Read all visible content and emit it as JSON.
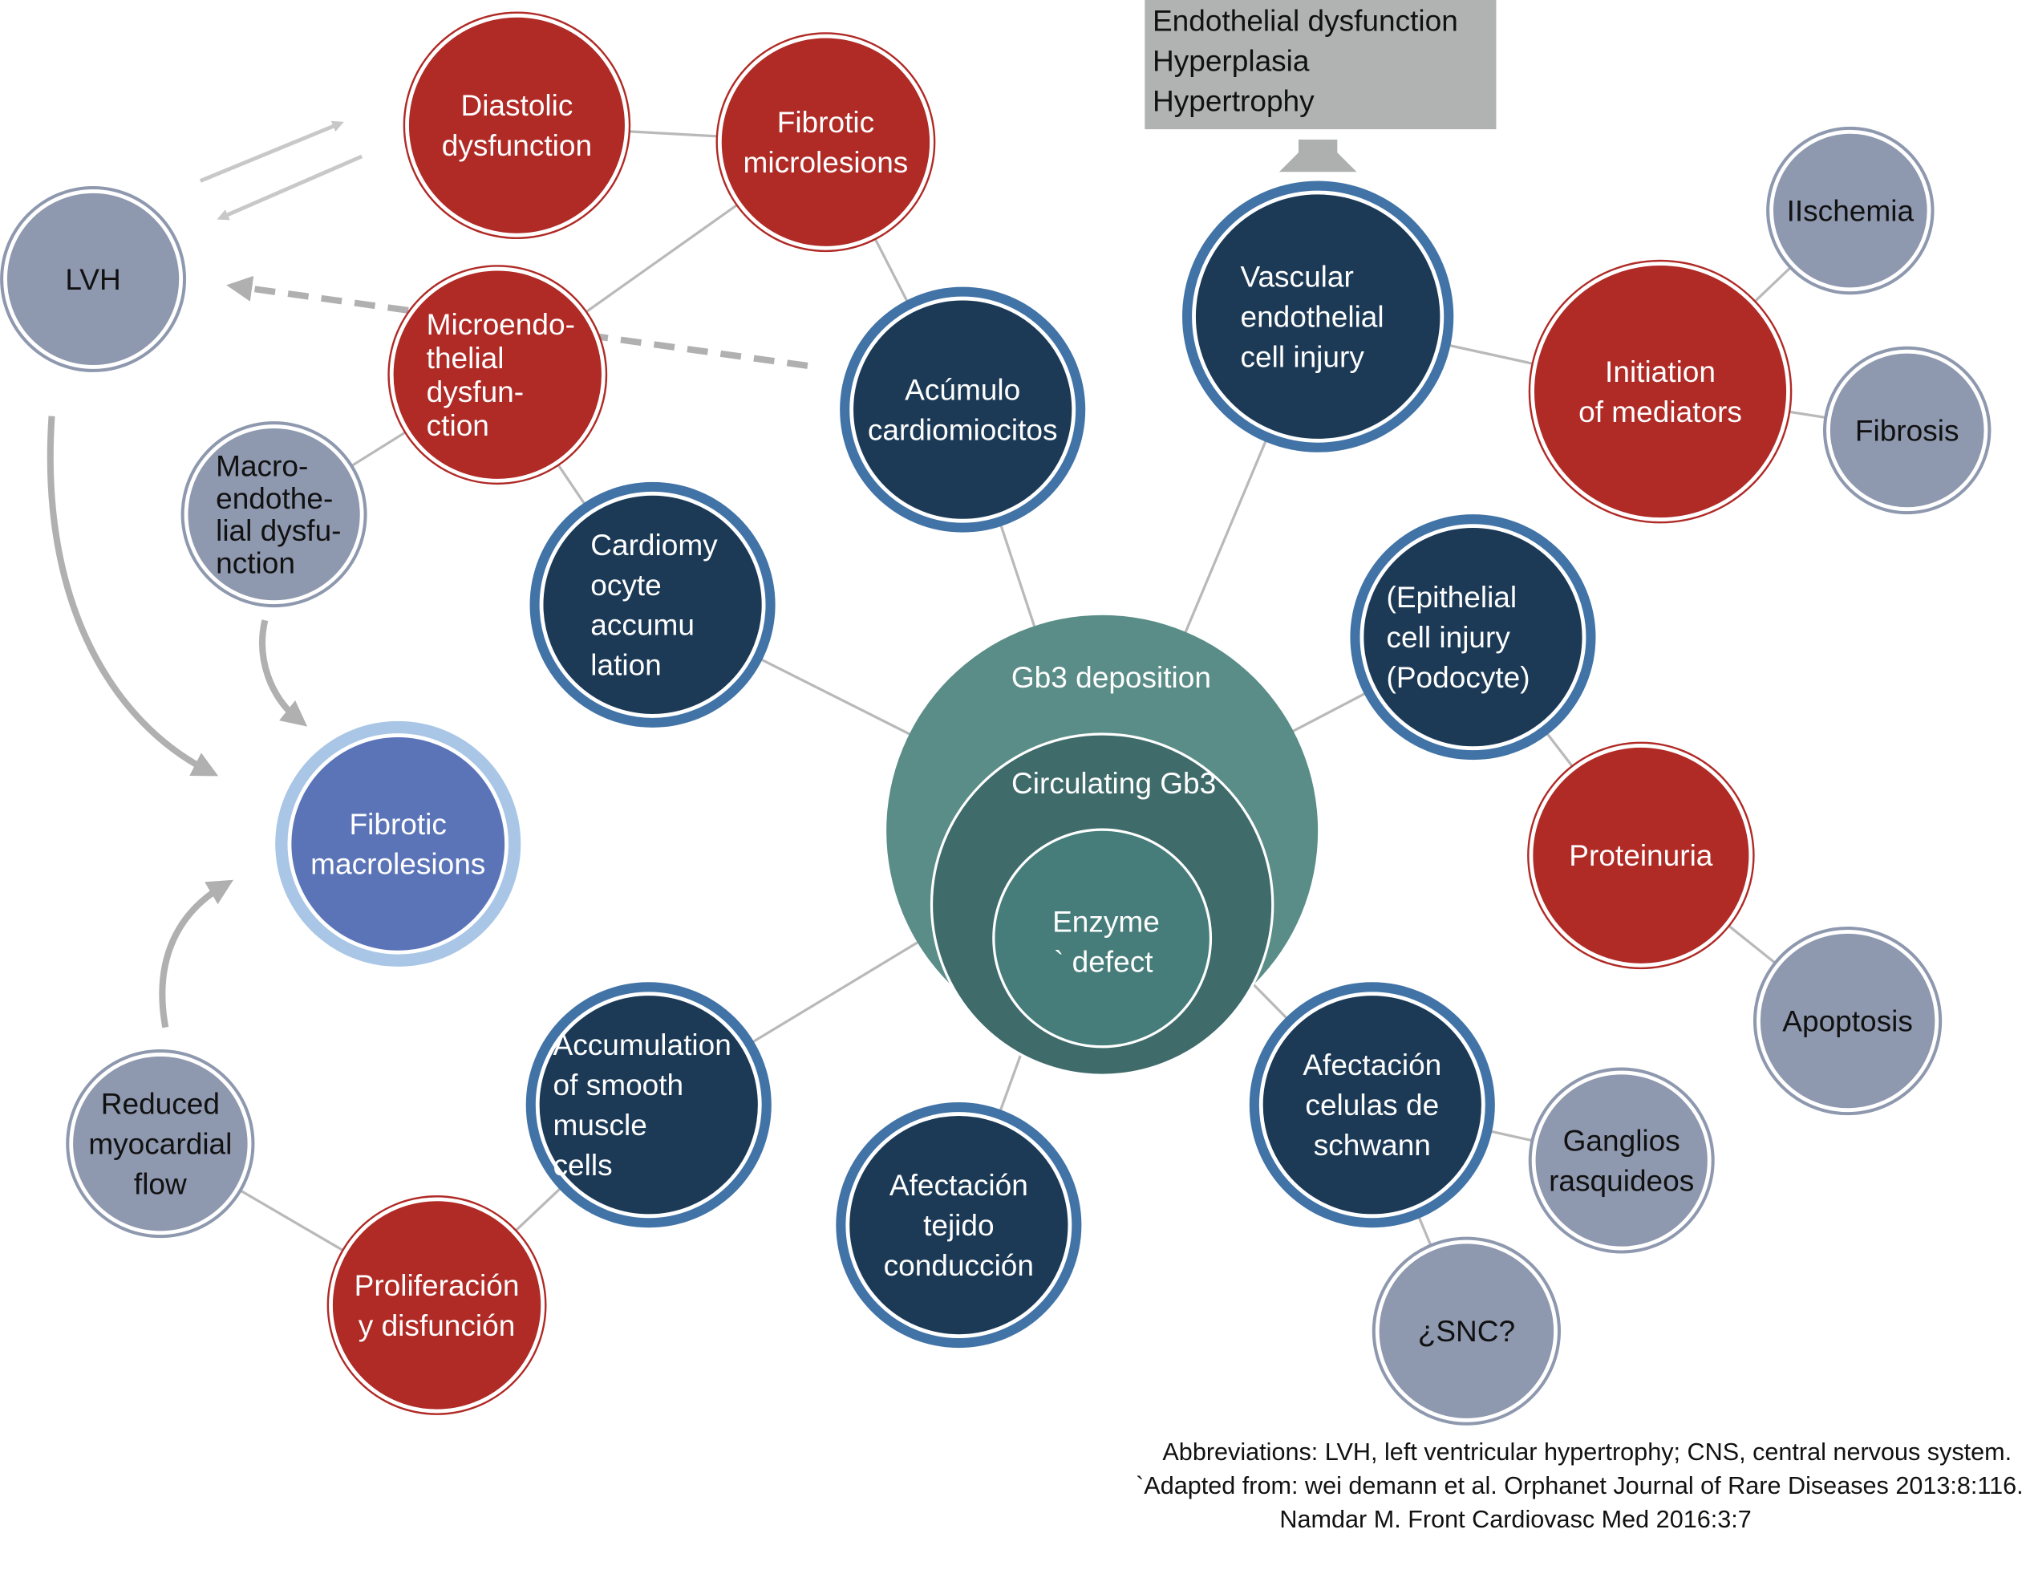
{
  "colors": {
    "red": "#b02a26",
    "navy": "#1c3a56",
    "navy_ring": "#4273a6",
    "gray": "#8e98ae",
    "purple": "#5b74b8",
    "purple_ring": "#a9c6e6",
    "teal_outer": "#5a8d87",
    "teal_middle": "#3f6b6b",
    "teal_inner": "#467d7a",
    "connector": "#b9b9b9",
    "box": "#b1b3b3"
  },
  "effects_box": {
    "lines": [
      "Endothelial dysfunction",
      "Hyperplasia",
      "Hypertrophy"
    ]
  },
  "center": {
    "outer_label": "Gb3 deposition",
    "middle_label": "Circulating Gb3",
    "inner_lines": [
      "Enzyme",
      "` defect"
    ]
  },
  "nodes": [
    {
      "id": "diastolic",
      "type": "red",
      "lines": [
        "Diastolic",
        "dysfunction"
      ]
    },
    {
      "id": "fibrotic-micro",
      "type": "red",
      "lines": [
        "Fibrotic",
        "microlesions"
      ]
    },
    {
      "id": "microendo",
      "type": "red",
      "lines": [
        "Microendo-",
        "thelial",
        "dysfun-",
        "ction"
      ]
    },
    {
      "id": "lvh",
      "type": "gray",
      "lines": [
        "LVH"
      ]
    },
    {
      "id": "macroendo",
      "type": "gray",
      "lines": [
        "Macro-",
        "endothe-",
        "lial dysfu-",
        "nction"
      ]
    },
    {
      "id": "cardiomyocyte-acc",
      "type": "navy",
      "lines": [
        "Cardiomy",
        "ocyte",
        "accumu",
        "lation"
      ]
    },
    {
      "id": "acumulo",
      "type": "navy",
      "lines": [
        "Acúmulo",
        "cardiomiocitos"
      ]
    },
    {
      "id": "fibrotic-macro",
      "type": "purple",
      "lines": [
        "Fibrotic",
        "macrolesions"
      ]
    },
    {
      "id": "vascular",
      "type": "navy",
      "lines": [
        "Vascular",
        " endothelial",
        "cell injury"
      ]
    },
    {
      "id": "mediators",
      "type": "red",
      "lines": [
        "Initiation",
        "of mediators"
      ]
    },
    {
      "id": "ischemia",
      "type": "gray",
      "lines": [
        "IIschemia"
      ]
    },
    {
      "id": "fibrosis",
      "type": "gray",
      "lines": [
        "Fibrosis"
      ]
    },
    {
      "id": "epithelial",
      "type": "navy",
      "lines": [
        "(Epithelial",
        "cell injury",
        "(Podocyte)"
      ]
    },
    {
      "id": "proteinuria",
      "type": "red",
      "lines": [
        "Proteinuria"
      ]
    },
    {
      "id": "apoptosis",
      "type": "gray",
      "lines": [
        "Apoptosis"
      ]
    },
    {
      "id": "schwann",
      "type": "navy",
      "lines": [
        "Afectación",
        "celulas de",
        "schwann"
      ]
    },
    {
      "id": "ganglios",
      "type": "gray",
      "lines": [
        "Ganglios",
        "rasquideos"
      ]
    },
    {
      "id": "snc",
      "type": "gray",
      "lines": [
        "¿SNC?"
      ]
    },
    {
      "id": "conduccion",
      "type": "navy",
      "lines": [
        "Afectación",
        "tejido",
        "conducción"
      ]
    },
    {
      "id": "smooth-muscle",
      "type": "navy",
      "lines": [
        "Accumulation",
        " of smooth",
        "muscle",
        "cells"
      ]
    },
    {
      "id": "proliferacion",
      "type": "red",
      "lines": [
        "Proliferación",
        "y disfunción"
      ]
    },
    {
      "id": "reduced-flow",
      "type": "gray",
      "lines": [
        "Reduced",
        "myocardial",
        "flow"
      ]
    }
  ],
  "footnote": {
    "abbreviations": "Abbreviations: LVH, left ventricular hypertrophy; CNS, central nervous system.",
    "adapted": "`Adapted from: wei  demann et al. Orphanet Journal of Rare Diseases 2013:8:116.",
    "reference": "Namdar M. Front Cardiovasc Med 2016:3:7"
  }
}
